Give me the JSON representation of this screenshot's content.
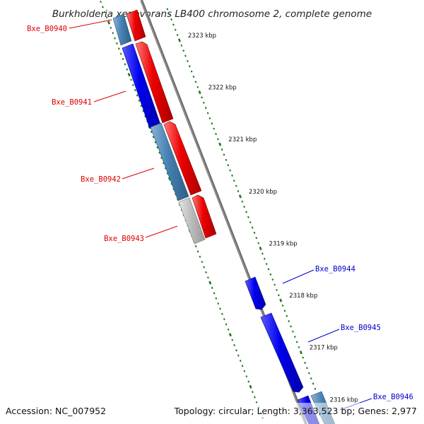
{
  "title": "Burkholderia xenovorans LB400 chromosome 2, complete genome",
  "footer": {
    "accession": "Accession: NC_007952",
    "summary": "Topology: circular; Length: 3,363,523 bp; Genes: 2,977"
  },
  "ticks": [
    {
      "kbp": 2323,
      "label": "2323 kbp"
    },
    {
      "kbp": 2322,
      "label": "2322 kbp"
    },
    {
      "kbp": 2321,
      "label": "2321 kbp"
    },
    {
      "kbp": 2320,
      "label": "2320 kbp"
    },
    {
      "kbp": 2319,
      "label": "2319 kbp"
    },
    {
      "kbp": 2318,
      "label": "2318 kbp"
    },
    {
      "kbp": 2317,
      "label": "2317 kbp"
    },
    {
      "kbp": 2316,
      "label": "2316 kbp"
    }
  ],
  "gene_labels": [
    {
      "name": "Bxe_B0940",
      "color": "#dd0000"
    },
    {
      "name": "Bxe_B0941",
      "color": "#dd0000"
    },
    {
      "name": "Bxe_B0942",
      "color": "#dd0000"
    },
    {
      "name": "Bxe_B0943",
      "color": "#dd0000"
    },
    {
      "name": "Bxe_B0944",
      "color": "#0000cc"
    },
    {
      "name": "Bxe_B0945",
      "color": "#0000cc"
    },
    {
      "name": "Bxe_B0946",
      "color": "#0000cc"
    }
  ],
  "colors": {
    "forward_gene": "#0000ee",
    "reverse_gene": "#ee0000",
    "blue_cog": "#4682b4",
    "gray_cog": "#b8b8b8",
    "backbone": "#888888",
    "tick_marks": "#1a7a1a"
  }
}
